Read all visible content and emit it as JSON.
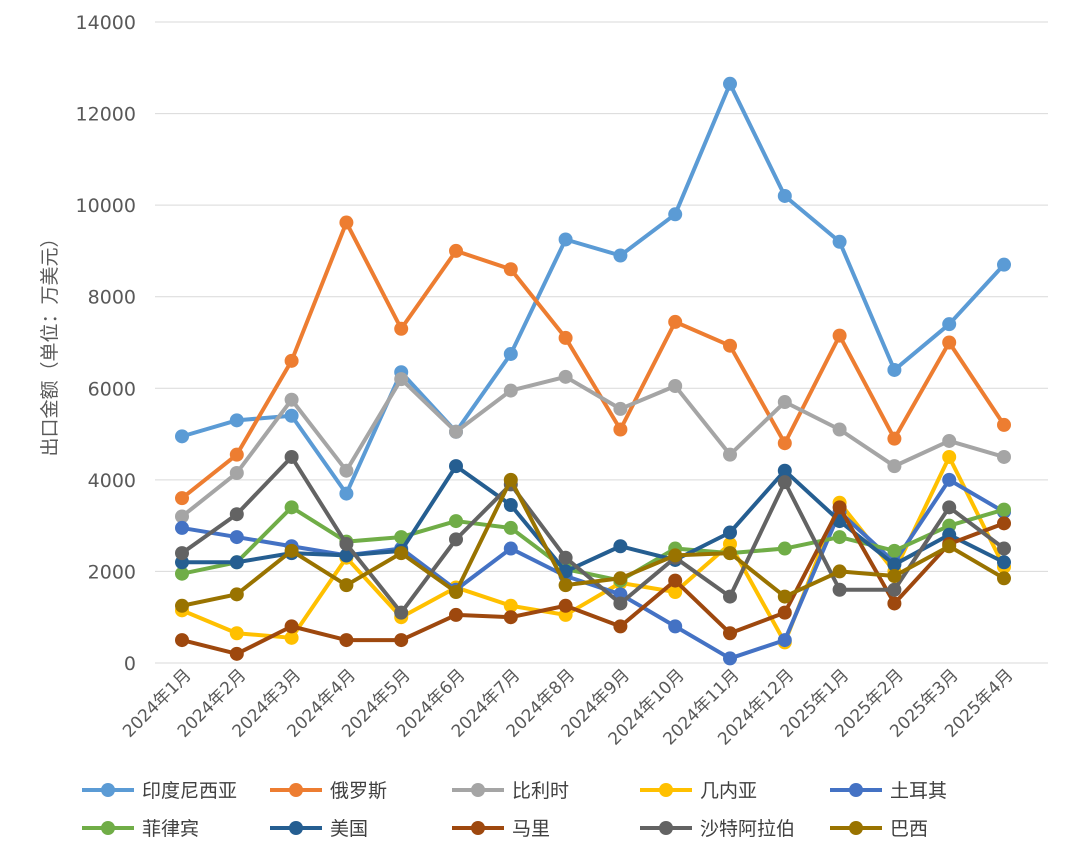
{
  "chart_data": {
    "type": "line",
    "title": "",
    "xlabel": "",
    "ylabel": "出口金额（单位：万美元）",
    "ylim": [
      0,
      14000
    ],
    "yticks": [
      0,
      2000,
      4000,
      6000,
      8000,
      10000,
      12000,
      14000
    ],
    "grid": true,
    "legend_position": "bottom",
    "categories": [
      "2024年1月",
      "2024年2月",
      "2024年3月",
      "2024年4月",
      "2024年5月",
      "2024年6月",
      "2024年7月",
      "2024年8月",
      "2024年9月",
      "2024年10月",
      "2024年11月",
      "2024年12月",
      "2025年1月",
      "2025年2月",
      "2025年3月",
      "2025年4月"
    ],
    "series": [
      {
        "name": "印度尼西亚",
        "color": "#5b9bd5",
        "values": [
          4950,
          5300,
          5400,
          3700,
          6350,
          5050,
          6750,
          9250,
          8900,
          9800,
          12650,
          10200,
          9200,
          6400,
          7400,
          8700
        ]
      },
      {
        "name": "俄罗斯",
        "color": "#ed7d31",
        "values": [
          3600,
          4550,
          6600,
          9620,
          7300,
          9000,
          8600,
          7100,
          5100,
          7450,
          6930,
          4800,
          7150,
          4900,
          7000,
          5200
        ]
      },
      {
        "name": "比利时",
        "color": "#a5a5a5",
        "values": [
          3200,
          4150,
          5750,
          4200,
          6200,
          5050,
          5950,
          6250,
          5550,
          6050,
          4550,
          5700,
          5100,
          4300,
          4850,
          4500
        ]
      },
      {
        "name": "几内亚",
        "color": "#ffc000",
        "values": [
          1150,
          650,
          550,
          2300,
          1000,
          1650,
          1250,
          1050,
          1750,
          1550,
          2600,
          450,
          3500,
          2000,
          4500,
          2100
        ]
      },
      {
        "name": "土耳其",
        "color": "#4472c4",
        "values": [
          2950,
          2750,
          2550,
          2350,
          2500,
          1600,
          2500,
          1900,
          1500,
          800,
          100,
          500,
          3300,
          2200,
          4000,
          3300
        ]
      },
      {
        "name": "菲律宾",
        "color": "#70ad47",
        "values": [
          1950,
          2200,
          3400,
          2650,
          2750,
          3100,
          2950,
          2050,
          1800,
          2500,
          2400,
          2500,
          2750,
          2450,
          3000,
          3350
        ]
      },
      {
        "name": "美国",
        "color": "#255e91",
        "values": [
          2200,
          2200,
          2400,
          2350,
          2450,
          4300,
          3450,
          2000,
          2550,
          2250,
          2850,
          4200,
          3100,
          2150,
          2800,
          2200
        ]
      },
      {
        "name": "马里",
        "color": "#9e480e",
        "values": [
          500,
          200,
          800,
          500,
          500,
          1050,
          1000,
          1250,
          800,
          1800,
          650,
          1100,
          3400,
          1300,
          2600,
          3050
        ]
      },
      {
        "name": "沙特阿拉伯",
        "color": "#636363",
        "values": [
          2400,
          3250,
          4500,
          2600,
          1100,
          2700,
          3900,
          2300,
          1300,
          2300,
          1450,
          3950,
          1600,
          1600,
          3400,
          2500
        ]
      },
      {
        "name": "巴西",
        "color": "#997300",
        "values": [
          1250,
          1500,
          2450,
          1700,
          2400,
          1550,
          4000,
          1700,
          1850,
          2350,
          2400,
          1450,
          2000,
          1900,
          2550,
          1850
        ]
      }
    ]
  }
}
